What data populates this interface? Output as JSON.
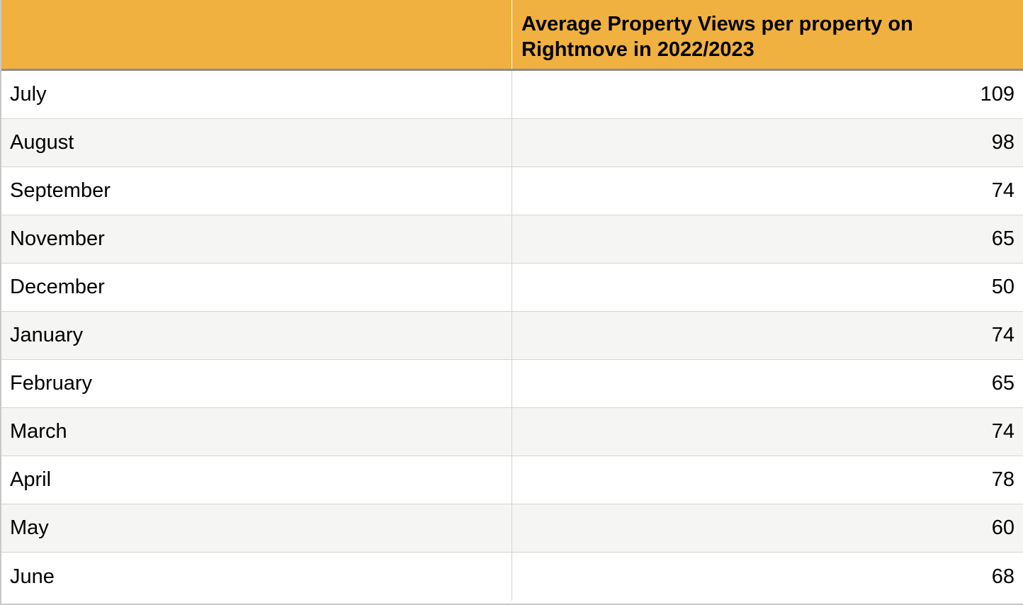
{
  "chart_data": {
    "type": "table",
    "header": {
      "month_column": "",
      "value_column": "Average Property Views per property on Rightmove in 2022/2023"
    },
    "rows": [
      {
        "month": "July",
        "value": "109"
      },
      {
        "month": "August",
        "value": "98"
      },
      {
        "month": "September",
        "value": "74"
      },
      {
        "month": "November",
        "value": "65"
      },
      {
        "month": "December",
        "value": "50"
      },
      {
        "month": "January",
        "value": "74"
      },
      {
        "month": "February",
        "value": "65"
      },
      {
        "month": "March",
        "value": "74"
      },
      {
        "month": "April",
        "value": "78"
      },
      {
        "month": "May",
        "value": "60"
      },
      {
        "month": "June",
        "value": "68"
      }
    ],
    "colors": {
      "header_fill": "#f0b140",
      "alt_row_fill": "#f5f5f3",
      "row_fill": "#ffffff"
    }
  }
}
